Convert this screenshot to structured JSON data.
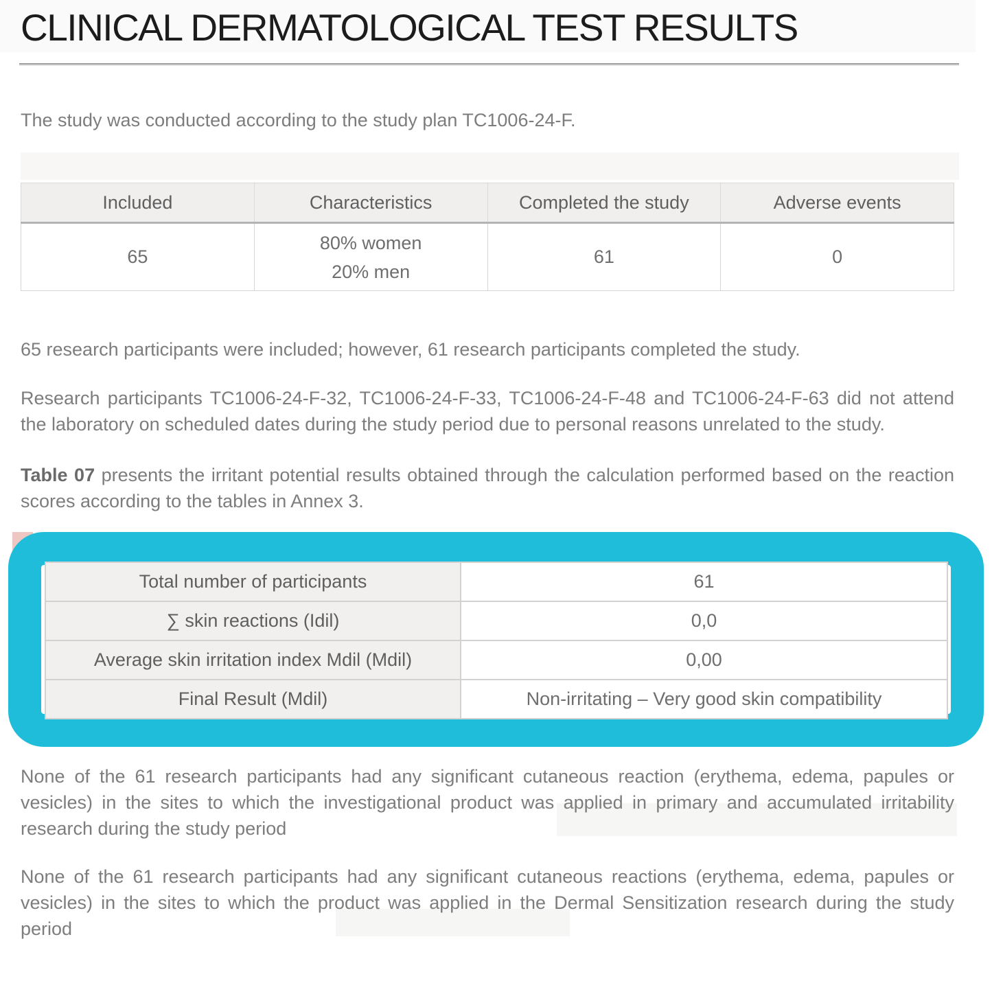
{
  "document": {
    "title": "CLINICAL DERMATOLOGICAL TEST RESULTS",
    "intro": "The study was conducted according to the study plan TC1006-24-F.",
    "paragraphs": {
      "p1": "65 research participants were included; however, 61 research participants completed the study.",
      "p2": "Research participants TC1006-24-F-32, TC1006-24-F-33, TC1006-24-F-48 and TC1006-24-F-63 did not attend the laboratory on scheduled dates during the study period due to personal reasons unrelated to the study.",
      "p3_lead": "Table 07",
      "p3_rest": " presents the irritant potential results obtained through the calculation performed based on the reaction scores according to the tables in Annex 3.",
      "p4": "None of the 61 research participants had any significant cutaneous reaction (erythema, edema, papules or vesicles) in the sites to which the investigational product was applied in primary and accumulated irritability research during the study period",
      "p5": "None of the 61 research participants had any significant cutaneous reactions (erythema, edema, papules or vesicles) in the sites to which the product was applied in the Dermal Sensitization research during the study period"
    }
  },
  "participants_table": {
    "headers": [
      "Included",
      "Characteristics",
      "Completed the study",
      "Adverse events"
    ],
    "row": {
      "included": "65",
      "characteristics_line1": "80% women",
      "characteristics_line2": "20% men",
      "completed": "61",
      "adverse_events": "0"
    }
  },
  "results_table": {
    "rows": [
      {
        "label": "Total number of participants",
        "value": "61"
      },
      {
        "label": "∑ skin reactions (Idil)",
        "value": "0,0"
      },
      {
        "label": "Average skin irritation index Mdil (Mdil)",
        "value": "0,00"
      },
      {
        "label": "Final Result (Mdil)",
        "value": "Non-irritating – Very good skin compatibility"
      }
    ]
  },
  "colors": {
    "highlight_border": "#1fbdd9",
    "corner_accent": "#eec7c3",
    "title_band_bg": "#fafafa",
    "table_header_bg": "#f0efee",
    "table_label_bg": "#f1f0ee"
  }
}
